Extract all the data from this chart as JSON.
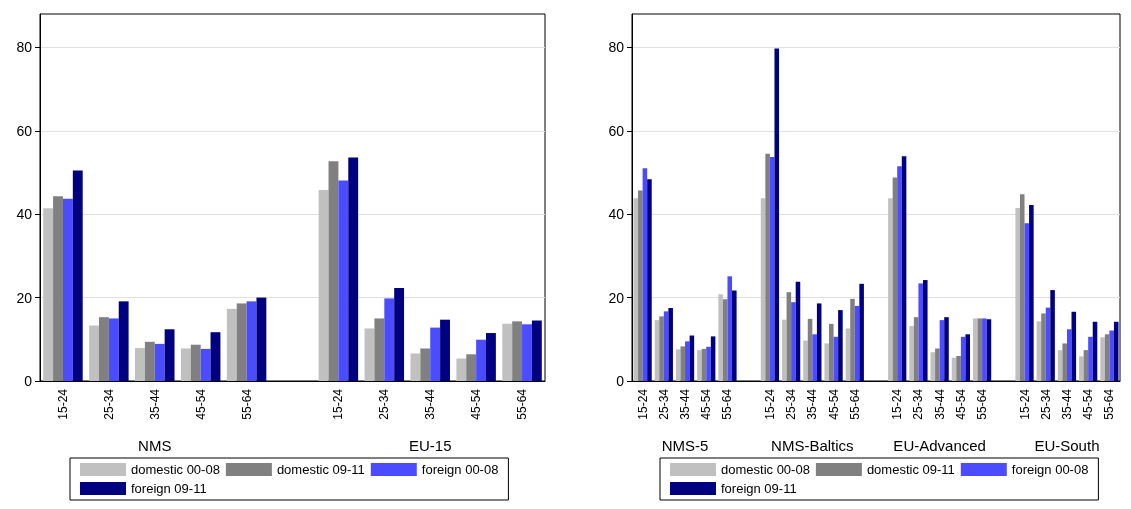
{
  "chart_data": [
    {
      "type": "bar",
      "categories": [
        "15-24",
        "25-34",
        "35-44",
        "45-54",
        "55-64",
        null,
        "15-24",
        "25-34",
        "35-44",
        "45-54",
        "55-64"
      ],
      "annotations": [
        "NMS",
        "EU-15"
      ],
      "ylim": [
        0,
        88
      ],
      "yticks": [
        0,
        20,
        40,
        60,
        80
      ],
      "grid": "y",
      "legend": "bottom",
      "series": [
        {
          "name": "domestic 00-08",
          "color": "#c0c0c0",
          "values": [
            41.4,
            13.3,
            7.9,
            7.8,
            17.3,
            null,
            45.8,
            12.6,
            6.6,
            5.4,
            13.7
          ]
        },
        {
          "name": "domestic 09-11",
          "color": "#808080",
          "values": [
            44.3,
            15.3,
            9.4,
            8.7,
            18.6,
            null,
            52.7,
            15.0,
            7.8,
            6.4,
            14.3
          ]
        },
        {
          "name": "foreign 00-08",
          "color": "#4b4bff",
          "values": [
            43.7,
            15.0,
            8.9,
            7.7,
            19.1,
            null,
            48.1,
            19.8,
            12.8,
            9.9,
            13.6
          ]
        },
        {
          "name": "foreign 09-11",
          "color": "#000080",
          "values": [
            50.5,
            19.1,
            12.4,
            11.7,
            20.0,
            null,
            53.6,
            22.3,
            14.7,
            11.5,
            14.5
          ]
        }
      ]
    },
    {
      "type": "bar",
      "categories": [
        "15-24",
        "25-34",
        "35-44",
        "45-54",
        "55-64",
        null,
        "15-24",
        "25-34",
        "35-44",
        "45-54",
        "55-64",
        null,
        "15-24",
        "25-34",
        "35-44",
        "45-54",
        "55-64",
        null,
        "15-24",
        "25-34",
        "35-44",
        "45-54",
        "55-64"
      ],
      "annotations": [
        "NMS-5",
        "NMS-Baltics",
        "EU-Advanced",
        "EU-South"
      ],
      "ylim": [
        0,
        88
      ],
      "yticks": [
        0,
        20,
        40,
        60,
        80
      ],
      "grid": "y",
      "legend": "bottom",
      "series": [
        {
          "name": "domestic 00-08",
          "color": "#c0c0c0",
          "values": [
            43.8,
            14.6,
            7.6,
            7.4,
            20.8,
            null,
            43.8,
            14.7,
            9.7,
            9.0,
            12.6,
            null,
            43.8,
            13.2,
            6.9,
            5.6,
            15.0,
            null,
            41.5,
            14.3,
            7.4,
            5.9,
            10.5
          ]
        },
        {
          "name": "domestic 09-11",
          "color": "#808080",
          "values": [
            45.7,
            15.5,
            8.3,
            7.7,
            19.6,
            null,
            54.5,
            21.3,
            14.9,
            13.7,
            19.7,
            null,
            48.8,
            15.3,
            7.8,
            6.0,
            15.0,
            null,
            44.8,
            16.2,
            9.0,
            7.4,
            11.2
          ]
        },
        {
          "name": "foreign 00-08",
          "color": "#4b4bff",
          "values": [
            51.0,
            16.7,
            9.5,
            8.2,
            25.1,
            null,
            53.7,
            18.9,
            11.2,
            10.6,
            18.0,
            null,
            51.5,
            23.4,
            14.6,
            10.6,
            15.0,
            null,
            37.8,
            17.6,
            12.4,
            10.6,
            12.1
          ]
        },
        {
          "name": "foreign 09-11",
          "color": "#000080",
          "values": [
            48.4,
            17.5,
            10.9,
            10.7,
            21.7,
            null,
            79.7,
            23.8,
            18.6,
            17.0,
            23.3,
            null,
            53.9,
            24.2,
            15.3,
            11.2,
            14.8,
            null,
            42.2,
            21.8,
            16.6,
            14.2,
            14.2
          ]
        }
      ]
    }
  ]
}
